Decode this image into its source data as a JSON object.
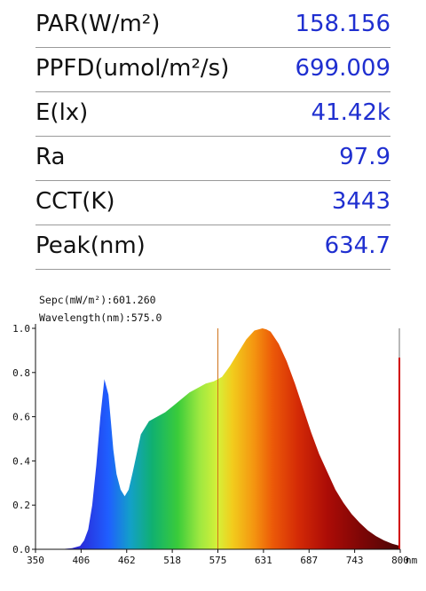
{
  "metrics": [
    {
      "label": "PAR(W/m²)",
      "value": "158.156"
    },
    {
      "label": "PPFD(umol/m²/s)",
      "value": "699.009"
    },
    {
      "label": "E(lx)",
      "value": "41.42k"
    },
    {
      "label": "Ra",
      "value": "97.9"
    },
    {
      "label": "CCT(K)",
      "value": "3443"
    },
    {
      "label": "Peak(nm)",
      "value": "634.7"
    }
  ],
  "readout": {
    "spec": "Sepc(mW/m²):601.260",
    "wavelength": "Wavelength(nm):575.0"
  },
  "chart_data": {
    "type": "area",
    "title": "",
    "xlabel": "",
    "ylabel": "",
    "x_unit": "nm",
    "xlim": [
      350,
      800
    ],
    "ylim": [
      0,
      1.0
    ],
    "x_ticks": [
      "350",
      "406",
      "462",
      "518",
      "575",
      "631",
      "687",
      "743",
      "800"
    ],
    "y_ticks": [
      "0.0",
      "0.2",
      "0.4",
      "0.6",
      "0.8",
      "1.0"
    ],
    "cursor_x": 575,
    "colors": {
      "cursor": "#d0741c",
      "marker": "#d10000",
      "axis": "#111111"
    },
    "series": [
      {
        "x": [
          350,
          380,
          395,
          405,
          410,
          415,
          420,
          425,
          430,
          435,
          440,
          443,
          446,
          450,
          455,
          460,
          465,
          470,
          480,
          490,
          500,
          510,
          520,
          530,
          540,
          550,
          560,
          570,
          575,
          580,
          590,
          600,
          610,
          620,
          630,
          635,
          640,
          650,
          660,
          670,
          680,
          690,
          700,
          710,
          720,
          730,
          740,
          750,
          760,
          770,
          780,
          790,
          800
        ],
        "values": [
          0.0,
          0.0,
          0.005,
          0.015,
          0.04,
          0.09,
          0.2,
          0.38,
          0.6,
          0.77,
          0.7,
          0.58,
          0.45,
          0.34,
          0.27,
          0.24,
          0.27,
          0.35,
          0.52,
          0.58,
          0.6,
          0.62,
          0.65,
          0.68,
          0.71,
          0.73,
          0.75,
          0.76,
          0.77,
          0.78,
          0.83,
          0.89,
          0.95,
          0.99,
          1.0,
          0.995,
          0.985,
          0.93,
          0.85,
          0.75,
          0.64,
          0.53,
          0.43,
          0.35,
          0.27,
          0.21,
          0.16,
          0.12,
          0.085,
          0.06,
          0.04,
          0.025,
          0.015
        ]
      }
    ]
  }
}
